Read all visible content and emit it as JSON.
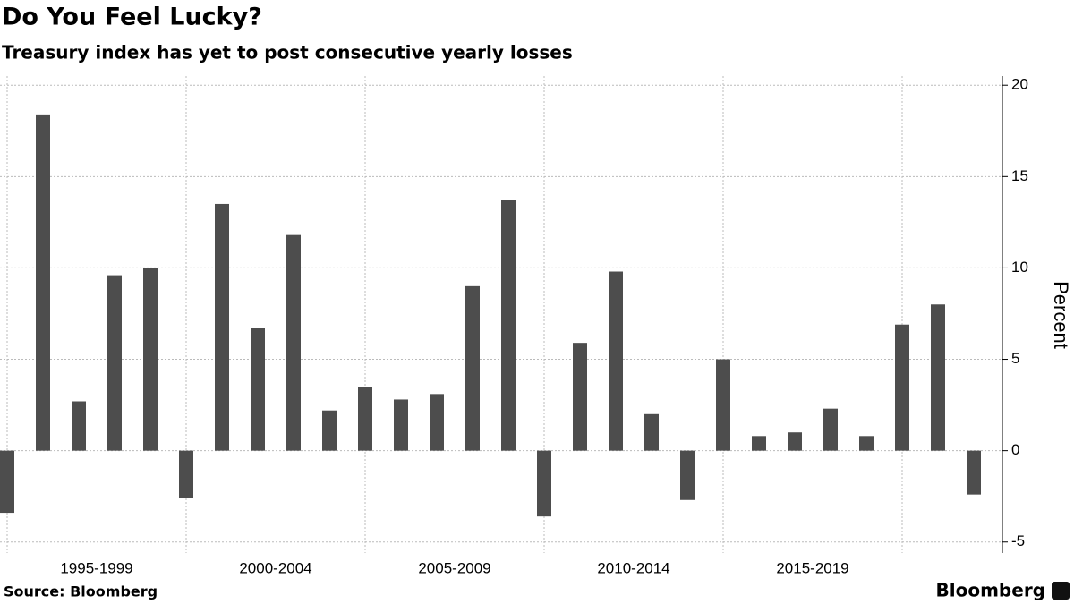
{
  "chart_data": {
    "type": "bar",
    "title": "Do You Feel Lucky?",
    "subtitle": "Treasury index has yet to post consecutive yearly losses",
    "y_label": "Percent",
    "source": "Source: Bloomberg",
    "brand": "Bloomberg",
    "categories": [
      null,
      null,
      null,
      null,
      null,
      null,
      null,
      null,
      null,
      null,
      null,
      null,
      null,
      null,
      null,
      null,
      null,
      null,
      null,
      null,
      null,
      null,
      null,
      null,
      null,
      null,
      null,
      null
    ],
    "group_labels": [
      "1995-1999",
      "2000-2004",
      "2005-2009",
      "2010-2014",
      "2015-2019"
    ],
    "values": [
      -3.4,
      18.4,
      2.7,
      9.6,
      10.0,
      -2.6,
      13.5,
      6.7,
      11.8,
      2.2,
      3.5,
      2.8,
      3.1,
      9.0,
      13.7,
      -3.6,
      5.9,
      9.8,
      2.0,
      -2.7,
      5.0,
      0.8,
      1.0,
      2.3,
      0.8,
      6.9,
      8.0,
      -2.4
    ],
    "color": "#4d4d4d",
    "ylim": [
      -5.6,
      20.5
    ],
    "yticks": [
      -5,
      0,
      5,
      10,
      15,
      20
    ],
    "grid": true
  }
}
